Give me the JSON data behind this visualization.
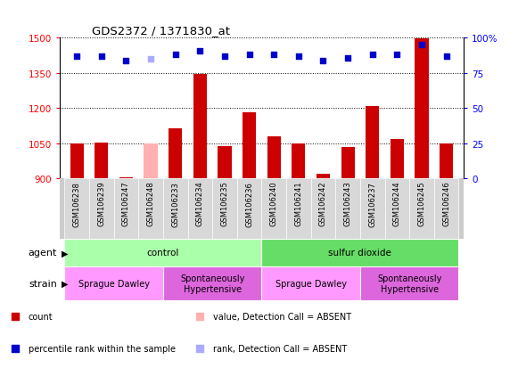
{
  "title": "GDS2372 / 1371830_at",
  "samples": [
    "GSM106238",
    "GSM106239",
    "GSM106247",
    "GSM106248",
    "GSM106233",
    "GSM106234",
    "GSM106235",
    "GSM106236",
    "GSM106240",
    "GSM106241",
    "GSM106242",
    "GSM106243",
    "GSM106237",
    "GSM106244",
    "GSM106245",
    "GSM106246"
  ],
  "count_values": [
    1047,
    1053,
    905,
    null,
    1113,
    1345,
    1037,
    1183,
    1078,
    1047,
    918,
    1035,
    1207,
    1068,
    1497,
    1047
  ],
  "absent_count": [
    null,
    null,
    null,
    1050,
    null,
    null,
    null,
    null,
    null,
    null,
    null,
    null,
    null,
    null,
    null,
    null
  ],
  "percentile_values": [
    87,
    87,
    84,
    null,
    88,
    91,
    87,
    88,
    88,
    87,
    84,
    86,
    88,
    88,
    95,
    87
  ],
  "absent_percentile": [
    null,
    null,
    null,
    85,
    null,
    null,
    null,
    null,
    null,
    null,
    null,
    null,
    null,
    null,
    null,
    null
  ],
  "bar_color": "#cc0000",
  "absent_bar_color": "#ffb0b0",
  "dot_color": "#0000cc",
  "absent_dot_color": "#aaaaff",
  "ylim_left": [
    900,
    1500
  ],
  "ylim_right": [
    0,
    100
  ],
  "yticks_left": [
    900,
    1050,
    1200,
    1350,
    1500
  ],
  "yticks_right": [
    0,
    25,
    50,
    75,
    100
  ],
  "agent_groups": [
    {
      "label": "control",
      "start": 0,
      "end": 8,
      "color": "#aaffaa"
    },
    {
      "label": "sulfur dioxide",
      "start": 8,
      "end": 16,
      "color": "#66dd66"
    }
  ],
  "strain_groups": [
    {
      "label": "Sprague Dawley",
      "start": 0,
      "end": 4,
      "color": "#ff99ff"
    },
    {
      "label": "Spontaneously\nHypertensive",
      "start": 4,
      "end": 8,
      "color": "#dd66dd"
    },
    {
      "label": "Sprague Dawley",
      "start": 8,
      "end": 12,
      "color": "#ff99ff"
    },
    {
      "label": "Spontaneously\nHypertensive",
      "start": 12,
      "end": 16,
      "color": "#dd66dd"
    }
  ],
  "agent_label": "agent",
  "strain_label": "strain",
  "bar_width": 0.55,
  "legend_items": [
    {
      "color": "#cc0000",
      "label": "count"
    },
    {
      "color": "#0000cc",
      "label": "percentile rank within the sample"
    },
    {
      "color": "#ffb0b0",
      "label": "value, Detection Call = ABSENT"
    },
    {
      "color": "#aaaaff",
      "label": "rank, Detection Call = ABSENT"
    }
  ],
  "tick_bg_color": "#cccccc",
  "tick_sep_color": "#aaaaaa"
}
